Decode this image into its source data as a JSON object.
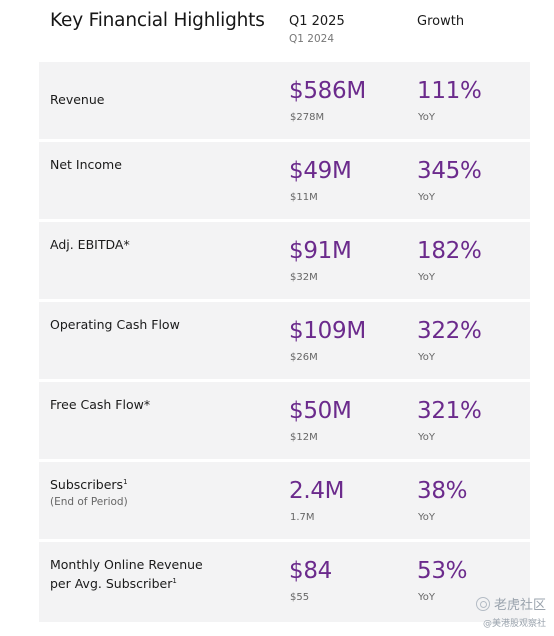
{
  "header": {
    "title": "Key Financial Highlights",
    "period": "Q1 2025",
    "prior_period": "Q1 2024",
    "growth": "Growth"
  },
  "colors": {
    "accent": "#6b2a8c",
    "row_background": "#f3f3f4"
  },
  "rows": [
    {
      "label": "Revenue",
      "sublabel": "",
      "footnote": "",
      "value": "$586M",
      "prior": "$278M",
      "growth": "111%",
      "growth_note": "YoY"
    },
    {
      "label": "Net Income",
      "sublabel": "",
      "footnote": "",
      "value": "$49M",
      "prior": "$11M",
      "growth": "345%",
      "growth_note": "YoY"
    },
    {
      "label": "Adj. EBITDA*",
      "sublabel": "",
      "footnote": "",
      "value": "$91M",
      "prior": "$32M",
      "growth": "182%",
      "growth_note": "YoY"
    },
    {
      "label": "Operating Cash Flow",
      "sublabel": "",
      "footnote": "",
      "value": "$109M",
      "prior": "$26M",
      "growth": "322%",
      "growth_note": "YoY"
    },
    {
      "label": "Free Cash Flow*",
      "sublabel": "",
      "footnote": "",
      "value": "$50M",
      "prior": "$12M",
      "growth": "321%",
      "growth_note": "YoY"
    },
    {
      "label": "Subscribers",
      "sublabel": "(End of Period)",
      "footnote": "1",
      "value": "2.4M",
      "prior": "1.7M",
      "growth": "38%",
      "growth_note": "YoY"
    },
    {
      "label_line1": "Monthly Online Revenue",
      "label": "per Avg. Subscriber",
      "sublabel": "",
      "footnote": "1",
      "value": "$84",
      "prior": "$55",
      "growth": "53%",
      "growth_note": "YoY"
    }
  ],
  "watermark": {
    "main": "老虎社区",
    "sub": "@美港股观察社",
    "icon": "tiger-logo-icon"
  }
}
